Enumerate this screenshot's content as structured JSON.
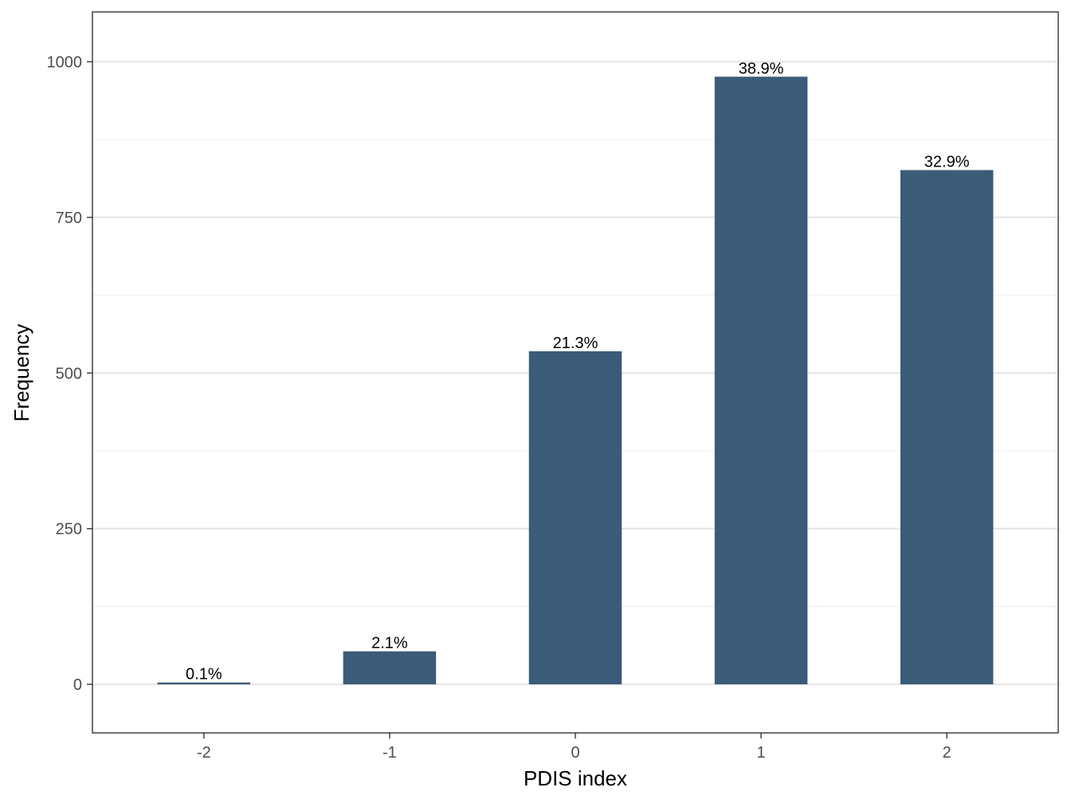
{
  "chart_data": {
    "type": "bar",
    "title": "",
    "xlabel": "PDIS index",
    "ylabel": "Frequency",
    "categories": [
      "-2",
      "-1",
      "0",
      "1",
      "2"
    ],
    "values": [
      3,
      53,
      535,
      976,
      826
    ],
    "data_labels": [
      "0.1%",
      "2.1%",
      "21.3%",
      "38.9%",
      "32.9%"
    ],
    "ylim": [
      -78,
      1080
    ],
    "yticks": [
      0,
      250,
      500,
      750,
      1000
    ],
    "ytick_labels": [
      "0",
      "250",
      "500",
      "750",
      "1000"
    ],
    "y_minor_ticks": [
      125,
      375,
      625,
      875
    ],
    "grid": true,
    "legend": "none",
    "colors": {
      "bar": "#3b5b78",
      "grid_major": "#e6e6e6",
      "grid_minor": "#f0f0f0",
      "panel_border": "#333333"
    }
  }
}
